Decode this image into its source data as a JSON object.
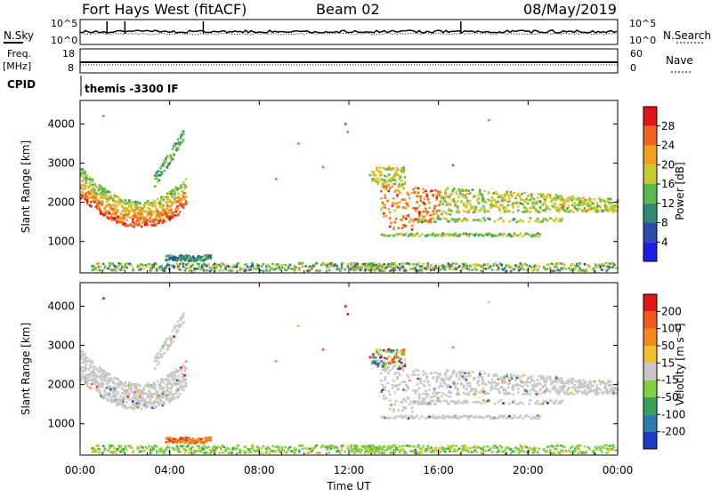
{
  "header": {
    "station": "Fort Hays West (fitACF)",
    "beam": "Beam 02",
    "date": "08/May/2019"
  },
  "summary": {
    "nsky_label": "N.Sky",
    "nsearch_label": "N.Search",
    "freq_label_1": "Freq.",
    "freq_label_2": "[MHz]",
    "nave_label": "Nave",
    "cpid_label": "CPID",
    "cpid_value": "themis -3300 IF",
    "noise_left_ticks": [
      "10^5",
      "10^0"
    ],
    "noise_right_ticks": [
      "10^5",
      "10^0"
    ],
    "freq_ticks": [
      "18",
      "8"
    ],
    "nave_ticks": [
      "60",
      "0"
    ]
  },
  "chart_data": [
    {
      "type": "heatmap",
      "name": "power",
      "ylabel": "Slant Range [km]",
      "xlim": [
        0,
        24
      ],
      "ylim": [
        200,
        4600
      ],
      "yticks": [
        "1000",
        "2000",
        "3000",
        "4000"
      ],
      "colorbar": {
        "label": "Power [dB]",
        "ticks": [
          "4",
          "8",
          "12",
          "16",
          "20",
          "24",
          "28"
        ],
        "colors": [
          "#1e1ee6",
          "#2a4ea8",
          "#2f8a74",
          "#59b84a",
          "#c9c934",
          "#f0a21e",
          "#ef6420",
          "#e01616"
        ]
      }
    },
    {
      "type": "heatmap",
      "name": "velocity",
      "ylabel": "Slant Range [km]",
      "xlabel": "Time UT",
      "xlim": [
        0,
        24
      ],
      "ylim": [
        200,
        4600
      ],
      "xticks": [
        "00:00",
        "04:00",
        "08:00",
        "12:00",
        "16:00",
        "20:00",
        "00:00"
      ],
      "yticks": [
        "1000",
        "2000",
        "3000",
        "4000"
      ],
      "colorbar": {
        "label": "Velocity [m s⁻¹]",
        "ticks": [
          "200",
          "100",
          "50",
          "15",
          "-15",
          "-50",
          "-100",
          "-200"
        ],
        "colors": [
          "#1e3ac8",
          "#2f7ab0",
          "#3aa05a",
          "#7fd040",
          "#c8c8c8",
          "#f0c030",
          "#f08a1e",
          "#ef5a1a",
          "#e01616"
        ]
      }
    }
  ]
}
